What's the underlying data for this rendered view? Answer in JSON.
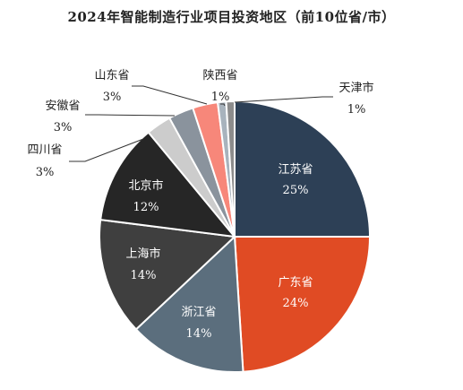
{
  "chart_data": {
    "type": "pie",
    "title": "2024年智能制造行业项目投资地区（前10位省/市）",
    "slices": [
      {
        "name": "江苏省",
        "value": 25,
        "label": "25%",
        "color": "#2d4056"
      },
      {
        "name": "广东省",
        "value": 24,
        "label": "24%",
        "color": "#e04b24"
      },
      {
        "name": "浙江省",
        "value": 14,
        "label": "14%",
        "color": "#5b6e7d"
      },
      {
        "name": "上海市",
        "value": 14,
        "label": "14%",
        "color": "#3f3f3f"
      },
      {
        "name": "北京市",
        "value": 12,
        "label": "12%",
        "color": "#262626"
      },
      {
        "name": "四川省",
        "value": 3,
        "label": "3%",
        "color": "#cccccc"
      },
      {
        "name": "安徽省",
        "value": 3,
        "label": "3%",
        "color": "#8a939d"
      },
      {
        "name": "山东省",
        "value": 3,
        "label": "3%",
        "color": "#f7877a"
      },
      {
        "name": "陕西省",
        "value": 1,
        "label": "1%",
        "color": "#a8b3bd"
      },
      {
        "name": "天津市",
        "value": 1,
        "label": "1%",
        "color": "#8c8c8c"
      }
    ]
  }
}
